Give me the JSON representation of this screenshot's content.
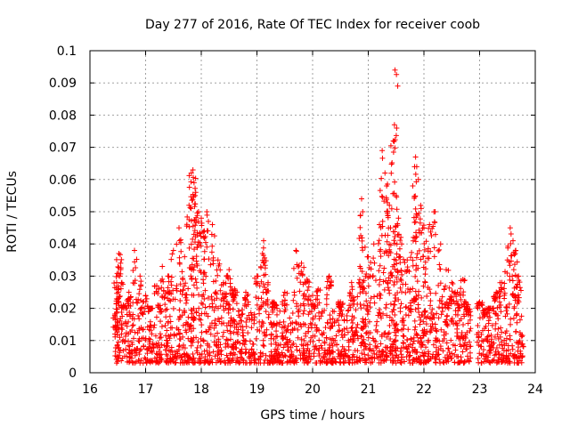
{
  "chart_data": {
    "type": "scatter",
    "title": "Day 277 of 2016, Rate Of TEC Index for receiver coob",
    "xlabel": "GPS time / hours",
    "ylabel": "ROTI / TECUs",
    "xlim": [
      16,
      24
    ],
    "ylim": [
      0,
      0.1
    ],
    "x_ticks": [
      16,
      17,
      18,
      19,
      20,
      21,
      22,
      23,
      24
    ],
    "x_tick_labels": [
      "16",
      "17",
      "18",
      "19",
      "20",
      "21",
      "22",
      "23",
      "24"
    ],
    "y_ticks": [
      0,
      0.01,
      0.02,
      0.03,
      0.04,
      0.05,
      0.06,
      0.07,
      0.08,
      0.09,
      0.1
    ],
    "y_tick_labels": [
      "0",
      "0.01",
      "0.02",
      "0.03",
      "0.04",
      "0.05",
      "0.06",
      "0.07",
      "0.08",
      "0.09",
      "0.1"
    ],
    "grid": true,
    "marker": "plus",
    "color": "#ff0000",
    "series": [
      {
        "name": "ROTI",
        "data_gap": [
          22.85,
          22.95
        ],
        "points": [
          [
            16.45,
            0.012
          ],
          [
            16.48,
            0.028
          ],
          [
            16.52,
            0.037
          ],
          [
            16.55,
            0.034
          ],
          [
            16.6,
            0.021
          ],
          [
            16.7,
            0.025
          ],
          [
            16.8,
            0.038
          ],
          [
            16.9,
            0.03
          ],
          [
            17.0,
            0.024
          ],
          [
            17.1,
            0.02
          ],
          [
            17.2,
            0.027
          ],
          [
            17.3,
            0.033
          ],
          [
            17.4,
            0.03
          ],
          [
            17.5,
            0.038
          ],
          [
            17.6,
            0.045
          ],
          [
            17.7,
            0.036
          ],
          [
            17.78,
            0.052
          ],
          [
            17.82,
            0.062
          ],
          [
            17.85,
            0.063
          ],
          [
            17.87,
            0.059
          ],
          [
            17.9,
            0.056
          ],
          [
            17.95,
            0.05
          ],
          [
            18.0,
            0.048
          ],
          [
            18.05,
            0.044
          ],
          [
            18.1,
            0.05
          ],
          [
            18.2,
            0.046
          ],
          [
            18.3,
            0.035
          ],
          [
            18.4,
            0.028
          ],
          [
            18.5,
            0.032
          ],
          [
            18.6,
            0.026
          ],
          [
            18.8,
            0.025
          ],
          [
            19.0,
            0.03
          ],
          [
            19.1,
            0.037
          ],
          [
            19.12,
            0.041
          ],
          [
            19.2,
            0.028
          ],
          [
            19.3,
            0.022
          ],
          [
            19.5,
            0.025
          ],
          [
            19.7,
            0.038
          ],
          [
            19.8,
            0.034
          ],
          [
            19.9,
            0.029
          ],
          [
            20.0,
            0.024
          ],
          [
            20.1,
            0.026
          ],
          [
            20.3,
            0.03
          ],
          [
            20.5,
            0.022
          ],
          [
            20.7,
            0.028
          ],
          [
            20.85,
            0.033
          ],
          [
            20.88,
            0.054
          ],
          [
            20.9,
            0.05
          ],
          [
            21.0,
            0.036
          ],
          [
            21.1,
            0.04
          ],
          [
            21.2,
            0.046
          ],
          [
            21.25,
            0.069
          ],
          [
            21.3,
            0.062
          ],
          [
            21.33,
            0.058
          ],
          [
            21.38,
            0.052
          ],
          [
            21.4,
            0.045
          ],
          [
            21.45,
            0.072
          ],
          [
            21.47,
            0.077
          ],
          [
            21.48,
            0.094
          ],
          [
            21.5,
            0.055
          ],
          [
            21.55,
            0.043
          ],
          [
            21.6,
            0.04
          ],
          [
            21.7,
            0.035
          ],
          [
            21.8,
            0.058
          ],
          [
            21.85,
            0.067
          ],
          [
            21.87,
            0.064
          ],
          [
            21.9,
            0.06
          ],
          [
            21.95,
            0.051
          ],
          [
            22.0,
            0.045
          ],
          [
            22.1,
            0.046
          ],
          [
            22.2,
            0.05
          ],
          [
            22.3,
            0.04
          ],
          [
            22.4,
            0.032
          ],
          [
            22.5,
            0.028
          ],
          [
            22.6,
            0.025
          ],
          [
            22.7,
            0.029
          ],
          [
            22.75,
            0.022
          ],
          [
            22.8,
            0.018
          ],
          [
            23.0,
            0.022
          ],
          [
            23.1,
            0.018
          ],
          [
            23.2,
            0.02
          ],
          [
            23.3,
            0.025
          ],
          [
            23.4,
            0.028
          ],
          [
            23.5,
            0.035
          ],
          [
            23.55,
            0.045
          ],
          [
            23.6,
            0.041
          ],
          [
            23.65,
            0.038
          ],
          [
            23.7,
            0.03
          ]
        ],
        "baseline_range": [
          0.003,
          0.02
        ]
      }
    ]
  }
}
